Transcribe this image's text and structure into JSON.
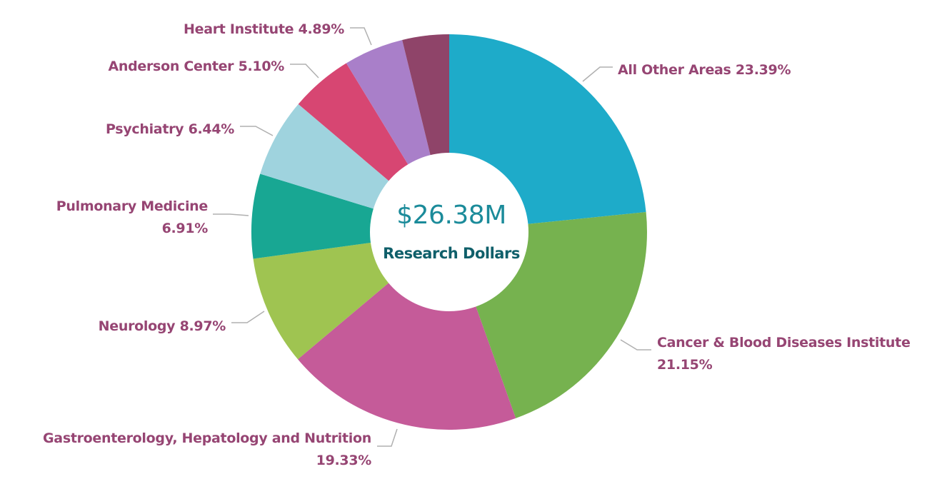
{
  "chart_data": {
    "type": "pie",
    "variant": "donut",
    "slices": [
      {
        "name": "All Other Areas",
        "value": 23.39,
        "label_lines": [
          "All Other Areas 23.39%"
        ],
        "color": "#1eabc9"
      },
      {
        "name": "Cancer & Blood Diseases Institute",
        "value": 21.15,
        "label_lines": [
          "Cancer & Blood Diseases Institute",
          "21.15%"
        ],
        "color": "#76b24f"
      },
      {
        "name": "Gastroenterology, Hepatology and Nutrition",
        "value": 19.33,
        "label_lines": [
          "Gastroenterology, Hepatology and Nutrition",
          "19.33%"
        ],
        "color": "#c55b99"
      },
      {
        "name": "Neurology",
        "value": 8.97,
        "label_lines": [
          "Neurology 8.97%"
        ],
        "color": "#9fc451"
      },
      {
        "name": "Pulmonary Medicine",
        "value": 6.91,
        "label_lines": [
          "Pulmonary Medicine",
          "6.91%"
        ],
        "color": "#18a793"
      },
      {
        "name": "Psychiatry",
        "value": 6.44,
        "label_lines": [
          "Psychiatry 6.44%"
        ],
        "color": "#9fd3de"
      },
      {
        "name": "Anderson Center",
        "value": 5.1,
        "label_lines": [
          "Anderson Center 5.10%"
        ],
        "color": "#d74672"
      },
      {
        "name": "Heart Institute",
        "value": 4.89,
        "label_lines": [
          "Heart Institute 4.89%"
        ],
        "color": "#a97fc9"
      },
      {
        "name": "",
        "value": 3.82,
        "label_lines": [],
        "color": "#8f4469"
      }
    ],
    "center": {
      "value": "$26.38M",
      "caption": "Research Dollars"
    },
    "label_color": "#964573",
    "center_value_color": "#1b8b9a",
    "center_caption_color": "#0f5f6a",
    "leader_line_color": "#b0b0b0"
  }
}
